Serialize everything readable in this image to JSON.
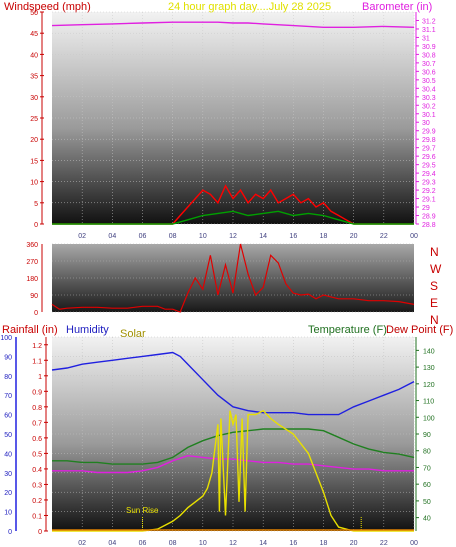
{
  "chart_data": [
    {
      "type": "line",
      "panel": "wind-barometer",
      "title": "24 hour graph day....July 28 2025",
      "left_axis": {
        "label": "Windspeed (mph)",
        "ticks": [
          "0",
          "5",
          "10",
          "15",
          "20",
          "25",
          "30",
          "35",
          "40",
          "45",
          "50"
        ],
        "range": [
          0,
          50
        ]
      },
      "right_axis": {
        "label": "Barometer (in)",
        "ticks": [
          "28.8",
          "28.9",
          "29",
          "29.1",
          "29.2",
          "29.3",
          "29.4",
          "29.5",
          "29.6",
          "29.7",
          "29.8",
          "29.9",
          "30",
          "30.1",
          "30.2",
          "30.3",
          "30.4",
          "30.5",
          "30.6",
          "30.7",
          "30.8",
          "30.9",
          "31",
          "31.1",
          "31.2"
        ],
        "range": [
          28.8,
          31.3
        ]
      },
      "x_ticks": [
        "02",
        "04",
        "06",
        "08",
        "10",
        "12",
        "14",
        "16",
        "18",
        "20",
        "22",
        "00"
      ],
      "x_range": [
        0,
        24
      ],
      "grid": true,
      "series": [
        {
          "name": "Barometer",
          "axis": "right",
          "color": "#e020e0",
          "x": [
            0,
            2,
            4,
            6,
            8,
            10,
            11,
            12,
            13,
            14,
            16,
            18,
            20,
            22,
            24
          ],
          "y": [
            31.14,
            31.15,
            31.16,
            31.17,
            31.18,
            31.18,
            31.18,
            31.17,
            31.17,
            31.16,
            31.14,
            31.12,
            31.12,
            31.13,
            31.12
          ]
        },
        {
          "name": "Windspeed gust",
          "axis": "left",
          "color": "#ff0000",
          "x": [
            0,
            2,
            4,
            6,
            8,
            8.5,
            9,
            9.5,
            10,
            10.5,
            11,
            11.5,
            12,
            12.5,
            13,
            13.5,
            14,
            14.5,
            15,
            15.5,
            16,
            16.5,
            17,
            17.5,
            18,
            18.5,
            19,
            19.5,
            20,
            22,
            24
          ],
          "y": [
            0,
            0,
            0,
            0,
            0,
            2,
            4,
            6,
            8,
            7,
            5,
            9,
            6,
            8,
            5,
            7,
            6,
            8,
            5,
            6,
            7,
            5,
            6,
            4,
            5,
            3,
            2,
            1,
            0,
            0,
            0
          ]
        },
        {
          "name": "Windspeed average",
          "axis": "left",
          "color": "#00a000",
          "x": [
            0,
            8,
            8.5,
            9,
            10,
            11,
            12,
            13,
            14,
            15,
            16,
            17,
            18,
            19,
            19.5,
            20,
            24
          ],
          "y": [
            0,
            0,
            0.5,
            1,
            2,
            2.5,
            3,
            2,
            2.5,
            3,
            2,
            2.5,
            2,
            1,
            0.5,
            0,
            0
          ]
        }
      ]
    },
    {
      "type": "scatter",
      "panel": "wind-direction",
      "left_axis": {
        "ticks": [
          "0",
          "90",
          "180",
          "270",
          "360"
        ],
        "range": [
          0,
          360
        ]
      },
      "right_labels": [
        "N",
        "W",
        "S",
        "E",
        "N"
      ],
      "x_range": [
        0,
        24
      ],
      "series": [
        {
          "name": "Wind direction",
          "color": "#e00000",
          "x": [
            0,
            0.5,
            1,
            2,
            3,
            4,
            5,
            6,
            7,
            7.5,
            8,
            8.5,
            9,
            9.5,
            10,
            10.5,
            11,
            11.5,
            12,
            12.5,
            13,
            13.5,
            14,
            14.5,
            15,
            15.5,
            16,
            16.5,
            17,
            17.5,
            18,
            18.5,
            19,
            20,
            21,
            22,
            23,
            24
          ],
          "y": [
            40,
            15,
            20,
            25,
            25,
            20,
            20,
            30,
            30,
            15,
            15,
            0,
            100,
            180,
            120,
            300,
            90,
            250,
            100,
            360,
            200,
            90,
            130,
            300,
            260,
            150,
            100,
            90,
            95,
            70,
            90,
            80,
            70,
            70,
            60,
            60,
            55,
            40
          ]
        }
      ]
    },
    {
      "type": "line",
      "panel": "rain-humidity-temp",
      "labels": {
        "rainfall": "Rainfall (in)",
        "humidity": "Humidity",
        "solar": "Solar",
        "temperature": "Temperature (F)",
        "dew_point": "Dew Point (F)",
        "sunrise": "Sun Rise"
      },
      "humidity_axis": {
        "ticks": [
          "0",
          "10",
          "20",
          "30",
          "40",
          "50",
          "60",
          "70",
          "80",
          "90",
          "100"
        ],
        "range": [
          0,
          100
        ]
      },
      "rain_axis": {
        "ticks": [
          "0",
          "0.1",
          "0.2",
          "0.3",
          "0.4",
          "0.5",
          "0.6",
          "0.7",
          "0.8",
          "0.9",
          "1",
          "1.1",
          "1.2"
        ],
        "range": [
          0,
          1.25
        ]
      },
      "temp_axis": {
        "ticks": [
          "40",
          "50",
          "60",
          "70",
          "80",
          "90",
          "100",
          "110",
          "120",
          "130",
          "140"
        ],
        "range": [
          32,
          148
        ]
      },
      "x_ticks": [
        "02",
        "04",
        "06",
        "08",
        "10",
        "12",
        "14",
        "16",
        "18",
        "20",
        "22",
        "00"
      ],
      "x_range": [
        0,
        24
      ],
      "grid": true,
      "series": [
        {
          "name": "Humidity",
          "color": "#2020e0",
          "x": [
            0,
            1,
            2,
            3,
            4,
            5,
            6,
            7,
            8,
            8.5,
            9,
            10,
            11,
            12,
            13,
            14,
            15,
            16,
            17,
            18,
            19,
            20,
            21,
            22,
            23,
            24
          ],
          "y": [
            83,
            84,
            86,
            87,
            88,
            89,
            90,
            91,
            92,
            90,
            86,
            78,
            70,
            64,
            62,
            61,
            61,
            61,
            60,
            60,
            60,
            64,
            67,
            70,
            73,
            77
          ]
        },
        {
          "name": "Temperature",
          "color": "#208020",
          "x": [
            0,
            1,
            2,
            3,
            4,
            5,
            6,
            7,
            8,
            9,
            10,
            11,
            12,
            13,
            14,
            15,
            16,
            17,
            18,
            19,
            20,
            21,
            22,
            23,
            24
          ],
          "y": [
            74,
            74,
            73,
            73,
            72,
            72,
            72,
            73,
            76,
            82,
            86,
            89,
            91,
            92,
            93,
            93,
            93,
            93,
            92,
            88,
            84,
            81,
            79,
            78,
            76
          ]
        },
        {
          "name": "Dew Point",
          "color": "#e020e0",
          "x": [
            0,
            1,
            2,
            3,
            4,
            5,
            6,
            7,
            8,
            9,
            10,
            11,
            12,
            13,
            14,
            15,
            16,
            17,
            18,
            19,
            20,
            21,
            22,
            23,
            24
          ],
          "y": [
            68,
            68,
            68,
            67,
            67,
            67,
            68,
            70,
            74,
            77,
            76,
            75,
            75,
            74,
            73,
            73,
            72,
            72,
            71,
            70,
            69,
            69,
            68,
            68,
            68
          ],
          "axis": "temperature"
        },
        {
          "name": "Solar",
          "color": "#e8e000",
          "x": [
            0,
            5,
            6,
            7,
            7.5,
            8,
            8.5,
            9,
            9.5,
            10,
            10.3,
            10.6,
            11,
            11.1,
            11.2,
            11.5,
            11.8,
            12,
            12.2,
            12.4,
            12.6,
            12.8,
            13,
            13.5,
            14,
            14.5,
            15,
            16,
            17,
            18,
            18.5,
            19,
            20,
            22,
            24
          ],
          "y": [
            0,
            0,
            0,
            1,
            3,
            5,
            8,
            12,
            15,
            18,
            22,
            30,
            55,
            10,
            58,
            8,
            62,
            55,
            60,
            15,
            58,
            10,
            60,
            60,
            62,
            58,
            55,
            50,
            40,
            20,
            8,
            2,
            0,
            0,
            0
          ],
          "axis": "humidity"
        }
      ]
    }
  ]
}
